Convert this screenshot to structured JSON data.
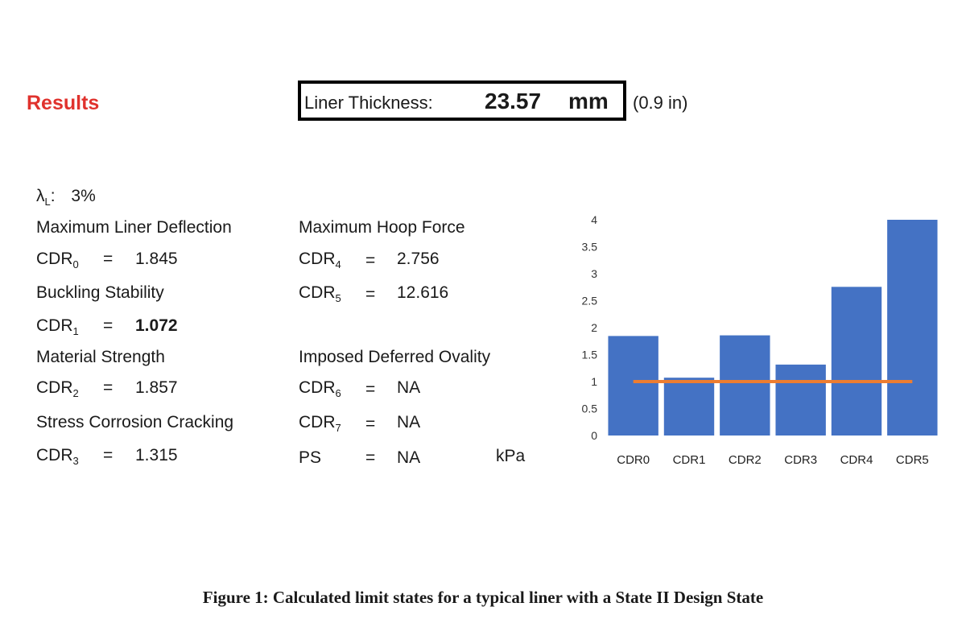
{
  "results": {
    "heading": "Results",
    "liner_thickness_label": "Liner Thickness:",
    "liner_thickness_value": "23.57",
    "liner_thickness_unit": "mm",
    "liner_thickness_alt": "(0.9 in)",
    "lambda_symbol": "λ",
    "lambda_sub": "L",
    "lambda_colon": ":",
    "lambda_value": "3%"
  },
  "left_column": [
    {
      "heading": "Maximum Liner Deflection",
      "cdr_prefix": "CDR",
      "cdr_sub": "0",
      "eq": "=",
      "value": "1.845"
    },
    {
      "heading": "Buckling Stability",
      "cdr_prefix": "CDR",
      "cdr_sub": "1",
      "eq": "=",
      "value": "1.072"
    },
    {
      "heading": "Material Strength",
      "cdr_prefix": "CDR",
      "cdr_sub": "2",
      "eq": "=",
      "value": "1.857"
    },
    {
      "heading": "Stress Corrosion Cracking",
      "cdr_prefix": "CDR",
      "cdr_sub": "3",
      "eq": "=",
      "value": "1.315"
    }
  ],
  "right_column": {
    "hoop_heading": "Maximum Hoop Force",
    "cdr4": {
      "prefix": "CDR",
      "sub": "4",
      "eq": "=",
      "value": "2.756"
    },
    "cdr5": {
      "prefix": "CDR",
      "sub": "5",
      "eq": "=",
      "value": "12.616"
    },
    "ovality_heading": "Imposed Deferred Ovality",
    "cdr6": {
      "prefix": "CDR",
      "sub": "6",
      "eq": "=",
      "value": "NA"
    },
    "cdr7": {
      "prefix": "CDR",
      "sub": "7",
      "eq": "=",
      "value": "NA"
    },
    "ps": {
      "label": "PS",
      "eq": "=",
      "value": "NA",
      "unit": "kPa"
    }
  },
  "caption": "Figure 1: Calculated limit states for a typical liner with a State II Design State",
  "colors": {
    "bar": "#4472c4",
    "threshold": "#ed7d31",
    "results": "#e0322d"
  },
  "chart_data": {
    "type": "bar",
    "categories": [
      "CDR0",
      "CDR1",
      "CDR2",
      "CDR3",
      "CDR4",
      "CDR5"
    ],
    "values": [
      1.845,
      1.072,
      1.857,
      1.315,
      2.756,
      4
    ],
    "threshold": 1,
    "ylim": [
      0,
      4
    ],
    "yticks": [
      "0",
      "0.5",
      "1",
      "1.5",
      "2",
      "2.5",
      "3",
      "3.5",
      "4"
    ],
    "title": "",
    "xlabel": "",
    "ylabel": "",
    "grid": false
  }
}
